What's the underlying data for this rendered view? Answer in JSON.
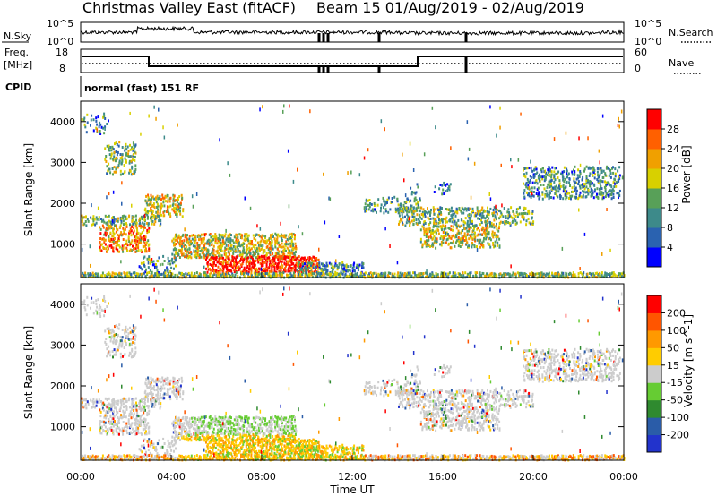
{
  "header": {
    "site": "Christmas Valley East (fitACF)",
    "beam_info": "Beam 15 01/Aug/2019 - 02/Aug/2019"
  },
  "top_panel": {
    "left_label": "N.Sky",
    "left_ticks": [
      "10^5",
      "10^0"
    ],
    "right_ticks": [
      "10^5",
      "10^0"
    ],
    "right_label": "N.Search"
  },
  "freq_panel": {
    "left_label_1": "Freq.",
    "left_label_2": "[MHz]",
    "left_ticks": [
      "18",
      "8"
    ],
    "right_ticks": [
      "60",
      "0"
    ],
    "right_label": "Nave"
  },
  "cpid_panel": {
    "label": "CPID",
    "text": "normal (fast) 151 RF"
  },
  "chart_data": [
    {
      "type": "heatmap",
      "name": "power-panel",
      "ylabel": "Slant Range [km]",
      "yticks": [
        "4000",
        "3000",
        "2000",
        "1000"
      ],
      "colorbar_label": "Power [dB]",
      "colorbar_ticks": [
        "28",
        "24",
        "20",
        "16",
        "12",
        "8",
        "4"
      ],
      "colors": [
        "#0000ff",
        "#2a62b0",
        "#3d8a8a",
        "#58a058",
        "#d8d000",
        "#f0a000",
        "#ff6000",
        "#ff0000"
      ]
    },
    {
      "type": "heatmap",
      "name": "velocity-panel",
      "ylabel": "Slant Range [km]",
      "yticks": [
        "4000",
        "3000",
        "2000",
        "1000"
      ],
      "colorbar_label": "Velocity [m s^-1]",
      "colorbar_ticks": [
        "200",
        "100",
        "50",
        "15",
        "-15",
        "-50",
        "-100",
        "-200"
      ],
      "colors": [
        "#2233cc",
        "#2a5ca8",
        "#2f8a2f",
        "#66cc33",
        "#cccccc",
        "#ffcc00",
        "#ff9900",
        "#ff5500",
        "#ff0000"
      ]
    }
  ],
  "xaxis": {
    "ticks": [
      "00:00",
      "04:00",
      "08:00",
      "12:00",
      "16:00",
      "20:00",
      "00:00"
    ],
    "label": "Time UT"
  }
}
